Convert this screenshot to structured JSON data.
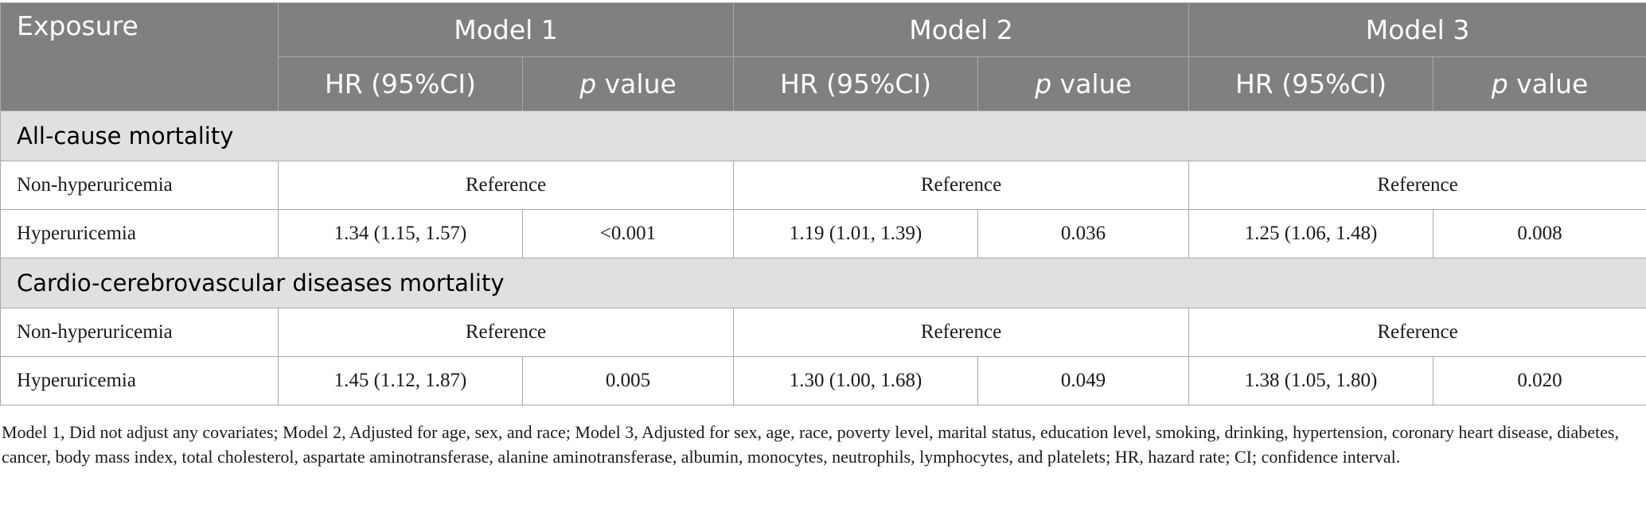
{
  "header": {
    "exposure": "Exposure",
    "models": [
      "Model 1",
      "Model 2",
      "Model 3"
    ],
    "hr_label": "HR (95%CI)",
    "p_letter": "p",
    "p_rest": " value"
  },
  "sections": [
    {
      "title": "All-cause mortality",
      "rows": [
        {
          "label": "Non-hyperuricemia",
          "reference": "Reference"
        },
        {
          "label": "Hyperuricemia",
          "m1_hr": "1.34 (1.15, 1.57)",
          "m1_p": "<0.001",
          "m2_hr": "1.19 (1.01, 1.39)",
          "m2_p": "0.036",
          "m3_hr": "1.25 (1.06, 1.48)",
          "m3_p": "0.008"
        }
      ]
    },
    {
      "title": "Cardio-cerebrovascular diseases mortality",
      "rows": [
        {
          "label": "Non-hyperuricemia",
          "reference": "Reference"
        },
        {
          "label": "Hyperuricemia",
          "m1_hr": "1.45 (1.12, 1.87)",
          "m1_p": "0.005",
          "m2_hr": "1.30 (1.00, 1.68)",
          "m2_p": "0.049",
          "m3_hr": "1.38 (1.05, 1.80)",
          "m3_p": "0.020"
        }
      ]
    }
  ],
  "footnote": "Model 1, Did not adjust any covariates; Model 2, Adjusted for age, sex, and race; Model 3, Adjusted for sex, age, race, poverty level, marital status, education level, smoking, drinking, hypertension, coronary heart disease, diabetes, cancer, body mass index, total cholesterol, aspartate aminotransferase, alanine aminotransferase, albumin, monocytes, neutrophils, lymphocytes, and platelets; HR, hazard rate; CI; confidence interval."
}
